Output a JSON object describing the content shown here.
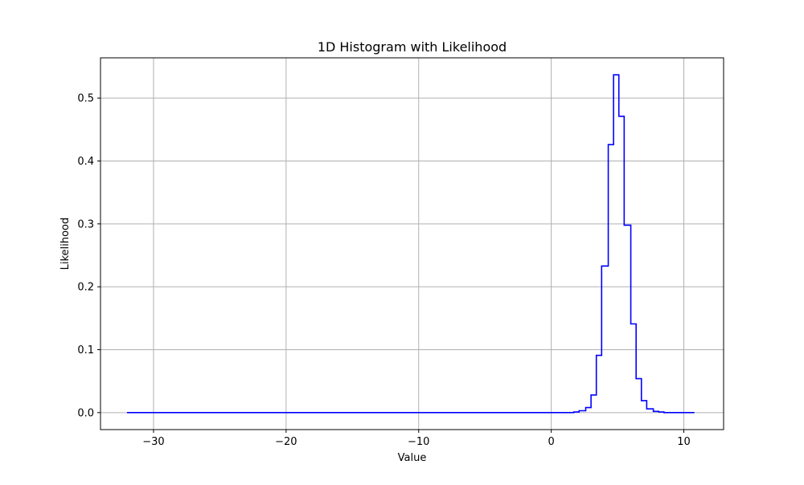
{
  "chart_data": {
    "type": "line",
    "style": "step",
    "title": "1D Histogram with Likelihood",
    "xlabel": "Value",
    "ylabel": "Likelihood",
    "xlim": [
      -34,
      13
    ],
    "ylim": [
      -0.027,
      0.564
    ],
    "xticks": [
      -30,
      -20,
      -10,
      0,
      10
    ],
    "yticks": [
      0.0,
      0.1,
      0.2,
      0.3,
      0.4,
      0.5
    ],
    "xtick_labels": [
      "−30",
      "−20",
      "−10",
      "0",
      "10"
    ],
    "ytick_labels": [
      "0.0",
      "0.1",
      "0.2",
      "0.3",
      "0.4",
      "0.5"
    ],
    "grid": true,
    "series_color": "#0000ff",
    "series": [
      {
        "x": [
          -32.0,
          1.7,
          2.1,
          2.6,
          3.0,
          3.4,
          3.8,
          4.3,
          4.7,
          5.1,
          5.5,
          6.0,
          6.4,
          6.8,
          7.2,
          7.7,
          8.1,
          8.5,
          10.8
        ],
        "y": [
          0.0,
          0.001,
          0.003,
          0.008,
          0.028,
          0.091,
          0.233,
          0.426,
          0.537,
          0.471,
          0.298,
          0.141,
          0.054,
          0.019,
          0.006,
          0.002,
          0.001,
          0.0,
          0.0
        ]
      }
    ]
  }
}
